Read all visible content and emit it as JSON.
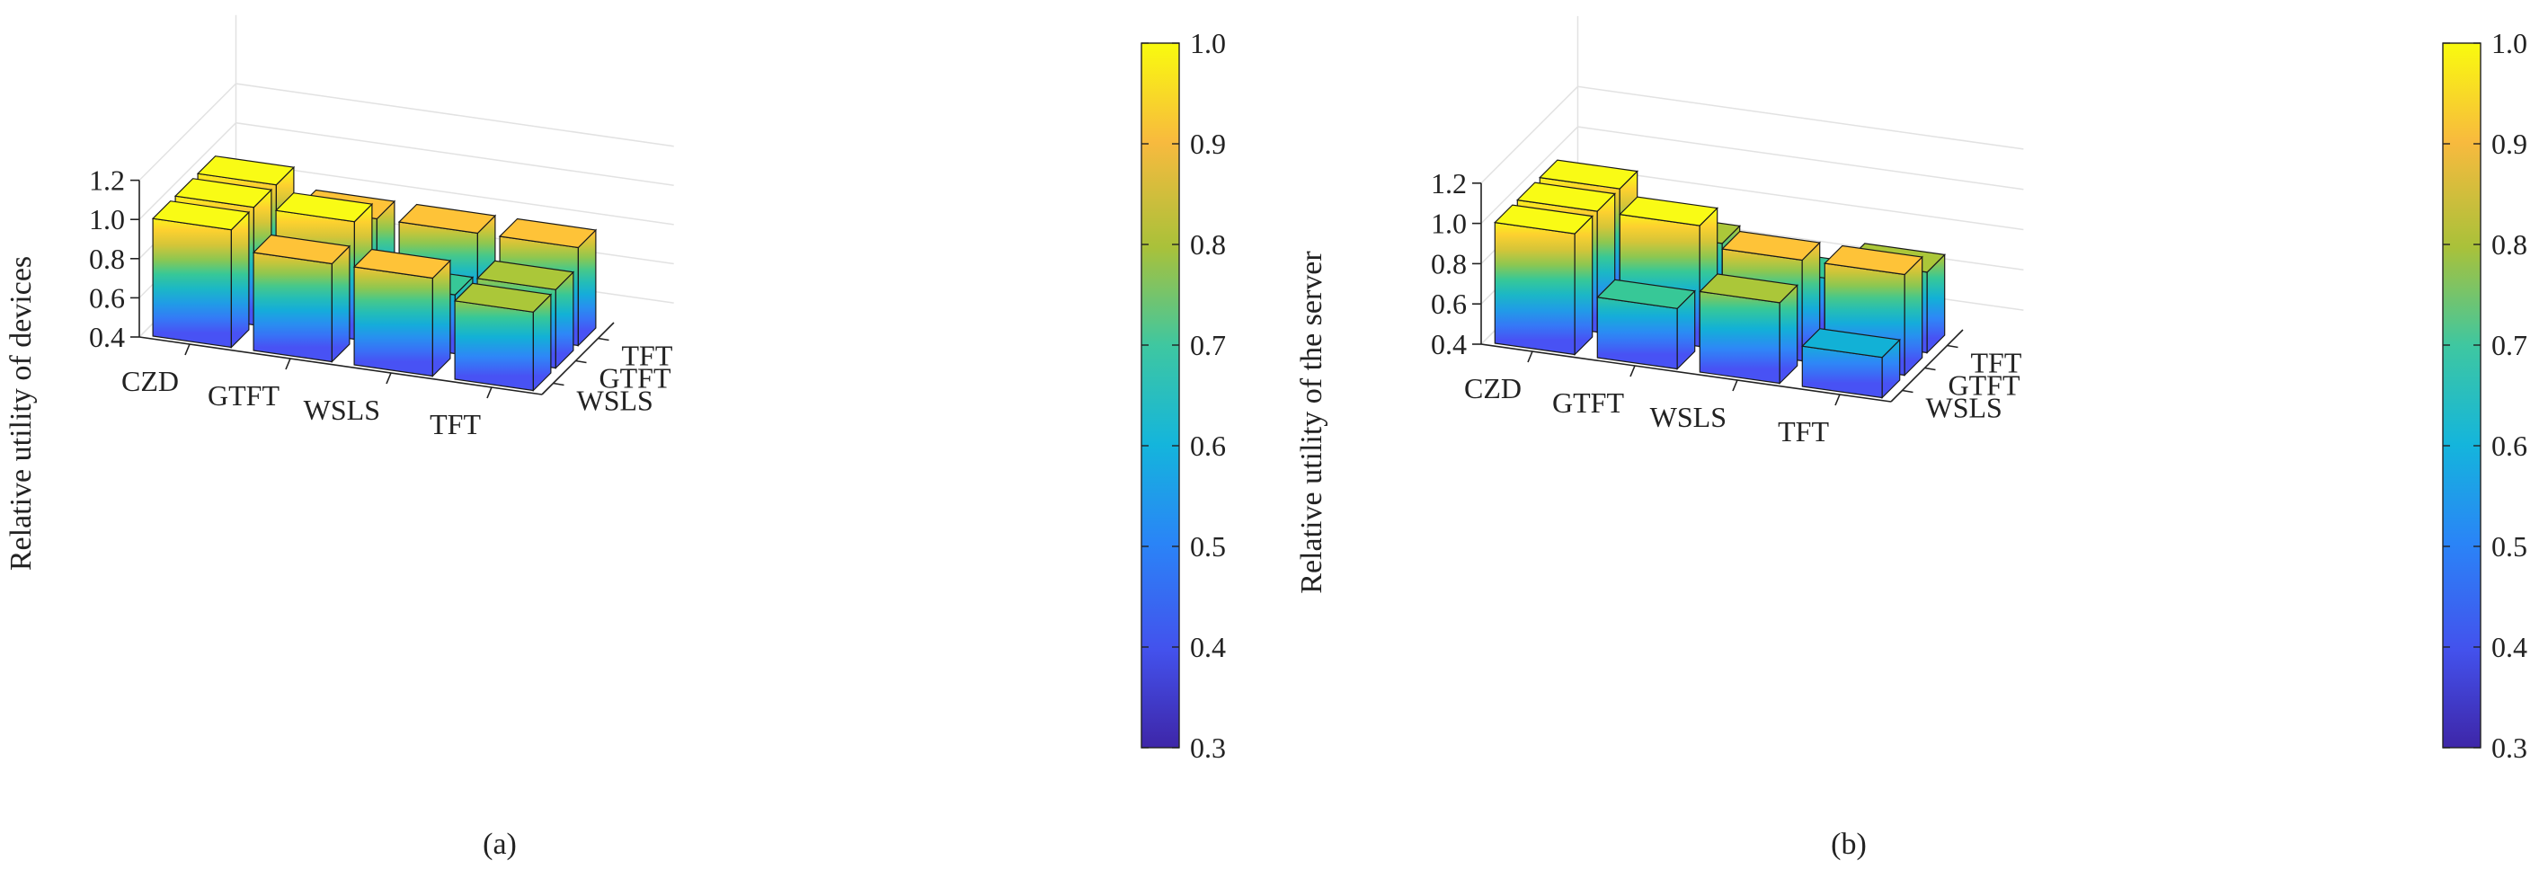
{
  "chart_data": [
    {
      "type": "bar3d",
      "subfigure_label": "(a)",
      "zlabel": "Relative utility of devices",
      "x_categories": [
        "CZD",
        "GTFT",
        "WSLS",
        "TFT"
      ],
      "y_categories": [
        "WSLS",
        "GTFT",
        "TFT"
      ],
      "z_ticks": [
        "0.4",
        "0.6",
        "0.8",
        "1.0",
        "1.2"
      ],
      "z_range": [
        0.4,
        1.2
      ],
      "colorbar": {
        "range": [
          0.3,
          1.0
        ],
        "ticks": [
          "0.3",
          "0.4",
          "0.5",
          "0.6",
          "0.7",
          "0.8",
          "0.9",
          "1.0"
        ],
        "colormap": "parula"
      },
      "values": {
        "WSLS": [
          1.0,
          0.9,
          0.9,
          0.8
        ],
        "GTFT": [
          1.0,
          1.0,
          0.7,
          0.8
        ],
        "TFT": [
          1.0,
          0.9,
          0.9,
          0.9
        ]
      }
    },
    {
      "type": "bar3d",
      "subfigure_label": "(b)",
      "zlabel": "Relative utility of the server",
      "x_categories": [
        "CZD",
        "GTFT",
        "WSLS",
        "TFT"
      ],
      "y_categories": [
        "WSLS",
        "GTFT",
        "TFT"
      ],
      "z_ticks": [
        "0.4",
        "0.6",
        "0.8",
        "1.0",
        "1.2"
      ],
      "z_range": [
        0.4,
        1.2
      ],
      "colorbar": {
        "range": [
          0.3,
          1.0
        ],
        "ticks": [
          "0.3",
          "0.4",
          "0.5",
          "0.6",
          "0.7",
          "0.8",
          "0.9",
          "1.0"
        ],
        "colormap": "parula"
      },
      "values": {
        "WSLS": [
          1.0,
          0.7,
          0.8,
          0.6
        ],
        "GTFT": [
          1.0,
          1.0,
          0.9,
          0.9
        ],
        "TFT": [
          1.0,
          0.8,
          0.7,
          0.8
        ]
      }
    }
  ]
}
